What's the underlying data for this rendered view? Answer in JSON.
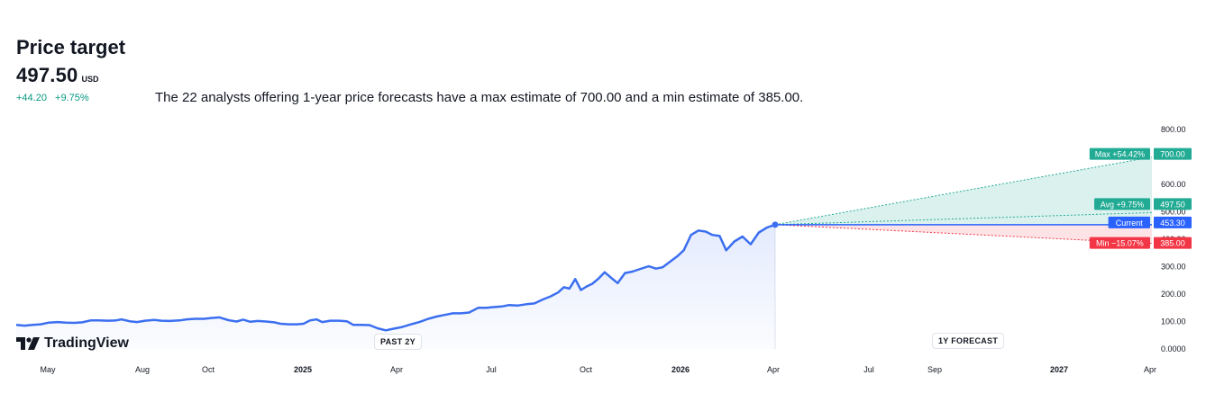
{
  "header": {
    "title": "Price target",
    "price": "497.50",
    "unit": "USD",
    "change_abs": "+44.20",
    "change_pct": "+9.75%",
    "summary": "The 22 analysts offering 1-year price forecasts have a max estimate of 700.00 and a min estimate of 385.00."
  },
  "logo": {
    "text": "TradingView",
    "icon": "tradingview-logo-icon"
  },
  "pills": {
    "past": "PAST 2Y",
    "forecast": "1Y FORECAST"
  },
  "colors": {
    "line": "#3b6ff0",
    "max": "#22ab94",
    "min": "#f23645",
    "current": "#2962ff",
    "avg": "#22ab94"
  },
  "labels": {
    "max": {
      "name": "Max +54.42%",
      "value": "700.00"
    },
    "avg": {
      "name": "Avg +9.75%",
      "value": "497.50"
    },
    "current": {
      "name": "Current",
      "value": "453.30"
    },
    "min": {
      "name": "Min −15.07%",
      "value": "385.00"
    }
  },
  "chart_data": {
    "type": "line",
    "y_ticks": [
      "800.00",
      "700.00",
      "600.00",
      "500.00",
      "400.00",
      "300.00",
      "200.00",
      "100.00",
      "0.0000"
    ],
    "ylim": [
      0,
      800
    ],
    "x_ticks": [
      "May",
      "Aug",
      "Oct",
      "2025",
      "Apr",
      "Jul",
      "Oct",
      "2026",
      "Apr",
      "Jul",
      "Sep",
      "2027",
      "Apr"
    ],
    "x_ticks_bold": [
      "2025",
      "2026",
      "2027"
    ],
    "history": [
      {
        "date": "2024-04-15",
        "y": 88
      },
      {
        "date": "2024-04-25",
        "y": 85
      },
      {
        "date": "2024-05-05",
        "y": 88
      },
      {
        "date": "2024-05-15",
        "y": 90
      },
      {
        "date": "2024-05-25",
        "y": 96
      },
      {
        "date": "2024-06-05",
        "y": 98
      },
      {
        "date": "2024-06-15",
        "y": 96
      },
      {
        "date": "2024-06-25",
        "y": 95
      },
      {
        "date": "2024-07-05",
        "y": 97
      },
      {
        "date": "2024-07-15",
        "y": 104
      },
      {
        "date": "2024-07-25",
        "y": 104
      },
      {
        "date": "2024-08-05",
        "y": 103
      },
      {
        "date": "2024-08-15",
        "y": 104
      },
      {
        "date": "2024-08-22",
        "y": 108
      },
      {
        "date": "2024-09-01",
        "y": 101
      },
      {
        "date": "2024-09-10",
        "y": 98
      },
      {
        "date": "2024-09-20",
        "y": 103
      },
      {
        "date": "2024-10-01",
        "y": 106
      },
      {
        "date": "2024-10-10",
        "y": 103
      },
      {
        "date": "2024-10-20",
        "y": 102
      },
      {
        "date": "2024-11-01",
        "y": 104
      },
      {
        "date": "2024-11-10",
        "y": 108
      },
      {
        "date": "2024-11-20",
        "y": 110
      },
      {
        "date": "2024-12-01",
        "y": 110
      },
      {
        "date": "2024-12-10",
        "y": 113
      },
      {
        "date": "2024-12-20",
        "y": 115
      },
      {
        "date": "2024-12-31",
        "y": 105
      },
      {
        "date": "2025-01-10",
        "y": 100
      },
      {
        "date": "2025-01-18",
        "y": 107
      },
      {
        "date": "2025-01-27",
        "y": 99
      },
      {
        "date": "2025-02-05",
        "y": 102
      },
      {
        "date": "2025-02-15",
        "y": 100
      },
      {
        "date": "2025-02-25",
        "y": 97
      },
      {
        "date": "2025-03-05",
        "y": 92
      },
      {
        "date": "2025-03-15",
        "y": 90
      },
      {
        "date": "2025-03-25",
        "y": 90
      },
      {
        "date": "2025-04-02",
        "y": 92
      },
      {
        "date": "2025-04-10",
        "y": 104
      },
      {
        "date": "2025-04-18",
        "y": 108
      },
      {
        "date": "2025-04-25",
        "y": 98
      },
      {
        "date": "2025-05-05",
        "y": 103
      },
      {
        "date": "2025-05-15",
        "y": 103
      },
      {
        "date": "2025-05-25",
        "y": 101
      },
      {
        "date": "2025-06-02",
        "y": 88
      },
      {
        "date": "2025-06-12",
        "y": 88
      },
      {
        "date": "2025-06-22",
        "y": 87
      },
      {
        "date": "2025-07-02",
        "y": 75
      },
      {
        "date": "2025-07-12",
        "y": 68
      },
      {
        "date": "2025-07-22",
        "y": 74
      },
      {
        "date": "2025-08-01",
        "y": 80
      },
      {
        "date": "2025-08-12",
        "y": 90
      },
      {
        "date": "2025-08-22",
        "y": 98
      },
      {
        "date": "2025-09-02",
        "y": 110
      },
      {
        "date": "2025-09-12",
        "y": 118
      },
      {
        "date": "2025-09-22",
        "y": 124
      },
      {
        "date": "2025-10-02",
        "y": 130
      },
      {
        "date": "2025-10-12",
        "y": 130
      },
      {
        "date": "2025-10-22",
        "y": 133
      },
      {
        "date": "2025-11-02",
        "y": 150
      },
      {
        "date": "2025-11-12",
        "y": 150
      },
      {
        "date": "2025-11-22",
        "y": 153
      },
      {
        "date": "2025-12-01",
        "y": 155
      },
      {
        "date": "2025-12-10",
        "y": 160
      },
      {
        "date": "2025-12-20",
        "y": 158
      },
      {
        "date": "2025-12-31",
        "y": 163
      },
      {
        "date": "2026-01-10",
        "y": 166
      },
      {
        "date": "2026-01-20",
        "y": 180
      },
      {
        "date": "2026-01-30",
        "y": 192
      },
      {
        "date": "2026-02-08",
        "y": 206
      },
      {
        "date": "2026-02-15",
        "y": 225
      },
      {
        "date": "2026-02-22",
        "y": 220
      },
      {
        "date": "2026-03-01",
        "y": 255
      },
      {
        "date": "2026-03-08",
        "y": 215
      },
      {
        "date": "2026-03-15",
        "y": 228
      },
      {
        "date": "2026-03-22",
        "y": 238
      },
      {
        "date": "2026-03-30",
        "y": 258
      },
      {
        "date": "2026-04-06",
        "y": 280
      },
      {
        "date": "2026-04-13",
        "y": 262
      },
      {
        "date": "2026-04-22",
        "y": 240
      },
      {
        "date": "2026-05-01",
        "y": 277
      },
      {
        "date": "2026-05-10",
        "y": 282
      },
      {
        "date": "2026-05-20",
        "y": 292
      },
      {
        "date": "2026-05-30",
        "y": 302
      },
      {
        "date": "2026-06-08",
        "y": 293
      },
      {
        "date": "2026-06-16",
        "y": 298
      },
      {
        "date": "2026-06-25",
        "y": 318
      },
      {
        "date": "2026-07-04",
        "y": 338
      },
      {
        "date": "2026-07-12",
        "y": 360
      },
      {
        "date": "2026-07-21",
        "y": 416
      },
      {
        "date": "2026-07-30",
        "y": 432
      },
      {
        "date": "2026-08-08",
        "y": 428
      },
      {
        "date": "2026-08-16",
        "y": 416
      },
      {
        "date": "2026-08-25",
        "y": 412
      },
      {
        "date": "2026-09-02",
        "y": 360
      },
      {
        "date": "2026-09-12",
        "y": 392
      },
      {
        "date": "2026-09-22",
        "y": 410
      },
      {
        "date": "2026-10-02",
        "y": 382
      },
      {
        "date": "2026-10-12",
        "y": 425
      },
      {
        "date": "2026-10-22",
        "y": 443
      },
      {
        "date": "2026-11-01",
        "y": 453.3
      }
    ],
    "forecast": {
      "start": {
        "date": "2026-11-01",
        "y": 453.3
      },
      "end_date": "2027-11-01",
      "max": 700.0,
      "avg": 497.5,
      "min": 385.0,
      "current": 453.3
    }
  }
}
